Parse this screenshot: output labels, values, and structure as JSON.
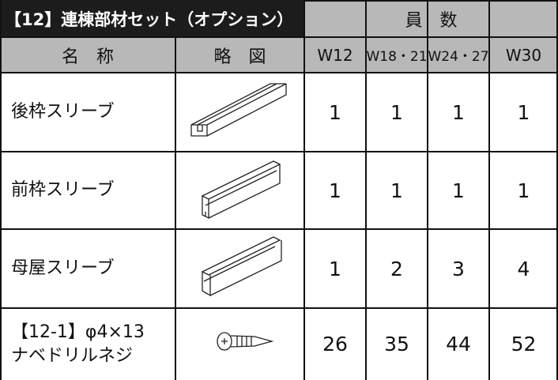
{
  "table": {
    "title": "【12】連棟部材セット（オプション）",
    "quantity_header": "員　数",
    "columns": [
      "名　称",
      "略　図",
      "W12",
      "W18・21",
      "W24・27",
      "W30"
    ],
    "rows": [
      {
        "name": [
          "後枠スリーブ"
        ],
        "counts": [
          1,
          1,
          1,
          1
        ]
      },
      {
        "name": [
          "前枠スリーブ"
        ],
        "counts": [
          1,
          1,
          1,
          1
        ]
      },
      {
        "name": [
          "母屋スリーブ"
        ],
        "counts": [
          1,
          2,
          3,
          4
        ]
      },
      {
        "name": [
          "【12-1】φ4×13",
          "ナベドリルネジ"
        ],
        "counts": [
          26,
          35,
          44,
          52
        ]
      }
    ]
  }
}
